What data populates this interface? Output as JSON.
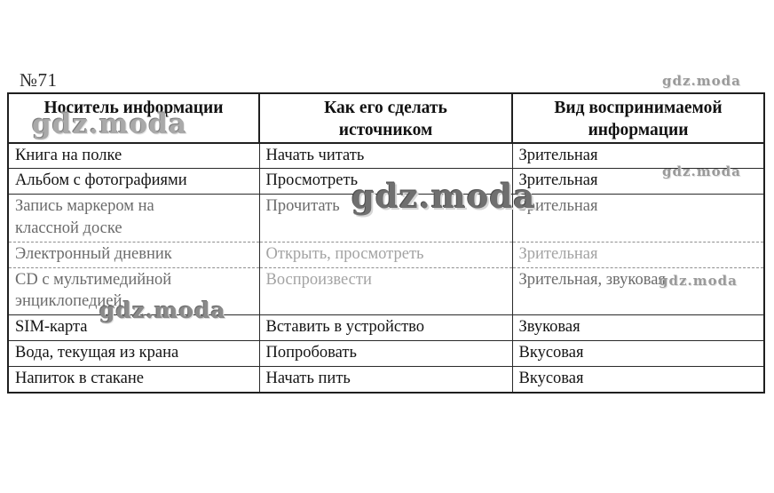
{
  "page": {
    "task_number": "№71",
    "background": "#ffffff"
  },
  "watermark_text": "gdz.moda",
  "table": {
    "columns": [
      "Носитель информации",
      "Как его сделать\nисточником",
      "Вид воспринимаемой\nинформации"
    ],
    "rows": [
      {
        "carrier": "Книга на полке",
        "action": "Начать читать",
        "perception": "Зрительная",
        "tones": [
          "dark",
          "dark",
          "dark"
        ],
        "faded_border": false
      },
      {
        "carrier": "Альбом с фотографиями",
        "action": "Просмотреть",
        "perception": "Зрительная",
        "tones": [
          "dark",
          "dark",
          "dark"
        ],
        "faded_border": false
      },
      {
        "carrier": "Запись маркером на\nклассной доске",
        "action": "Прочитать",
        "perception": "Зрительная",
        "tones": [
          "mid",
          "mid",
          "mid"
        ],
        "faded_border": true
      },
      {
        "carrier": "Электронный дневник",
        "action": "Открыть, просмотреть",
        "perception": "Зрительная",
        "tones": [
          "mid",
          "light",
          "light"
        ],
        "faded_border": true
      },
      {
        "carrier": "CD с мультимедийной\nэнциклопедией",
        "action": "Воспроизвести",
        "perception": "Зрительная, звуковая",
        "tones": [
          "mid",
          "light",
          "mid"
        ],
        "faded_border": false
      },
      {
        "carrier": "SIM-карта",
        "action": "Вставить в устройство",
        "perception": "Звуковая",
        "tones": [
          "dark",
          "dark",
          "dark"
        ],
        "faded_border": false
      },
      {
        "carrier": "Вода, текущая из крана",
        "action": "Попробовать",
        "perception": "Вкусовая",
        "tones": [
          "dark",
          "dark",
          "dark"
        ],
        "faded_border": false
      },
      {
        "carrier": "Напиток в стакане",
        "action": "Начать пить",
        "perception": "Вкусовая",
        "tones": [
          "dark",
          "dark",
          "dark"
        ],
        "faded_border": false
      }
    ]
  },
  "colors": {
    "border": "#1f1f1f",
    "text": "#141414",
    "faded_mid": "#6b6b6b",
    "faded_light": "#a3a3a3",
    "watermark": "#9a9a9a"
  }
}
